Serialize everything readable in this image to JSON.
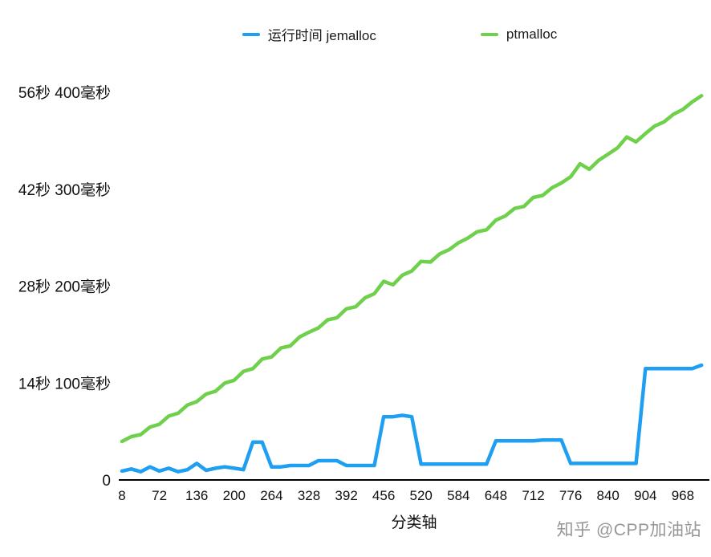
{
  "watermark": "知乎 @CPP加油站",
  "chart_data": {
    "type": "line",
    "title": "",
    "xlabel": "分类轴",
    "ylabel": "",
    "grid": false,
    "legend_position": "top",
    "xlim": [
      8,
      1008
    ],
    "ylim": [
      0,
      56.4
    ],
    "x_ticks": [
      8,
      72,
      136,
      200,
      264,
      328,
      392,
      456,
      520,
      584,
      648,
      712,
      776,
      840,
      904,
      968
    ],
    "y_ticks": [
      {
        "value": 0,
        "label": "0"
      },
      {
        "value": 14.1,
        "label": "14秒 100毫秒"
      },
      {
        "value": 28.2,
        "label": "28秒 200毫秒"
      },
      {
        "value": 42.3,
        "label": "42秒 300毫秒"
      },
      {
        "value": 56.4,
        "label": "56秒 400毫秒"
      }
    ],
    "x": [
      8,
      24,
      40,
      56,
      72,
      88,
      104,
      120,
      136,
      152,
      168,
      184,
      200,
      216,
      232,
      248,
      264,
      280,
      296,
      312,
      328,
      344,
      360,
      376,
      392,
      408,
      424,
      440,
      456,
      472,
      488,
      504,
      520,
      536,
      552,
      568,
      584,
      600,
      616,
      632,
      648,
      664,
      680,
      696,
      712,
      728,
      744,
      760,
      776,
      792,
      808,
      824,
      840,
      856,
      872,
      888,
      904,
      920,
      936,
      952,
      968,
      984,
      1000
    ],
    "series": [
      {
        "name": "运行时间 jemalloc",
        "color": "#1f9ff2",
        "values": [
          1.3,
          1.6,
          1.2,
          1.9,
          1.3,
          1.7,
          1.2,
          1.5,
          2.4,
          1.4,
          1.7,
          1.9,
          1.7,
          1.5,
          5.5,
          5.5,
          1.9,
          1.9,
          2.1,
          2.1,
          2.1,
          2.8,
          2.8,
          2.8,
          2.1,
          2.1,
          2.1,
          2.1,
          9.2,
          9.2,
          9.4,
          9.2,
          2.3,
          2.3,
          2.3,
          2.3,
          2.3,
          2.3,
          2.3,
          2.3,
          5.7,
          5.7,
          5.7,
          5.7,
          5.7,
          5.8,
          5.8,
          5.8,
          2.4,
          2.4,
          2.4,
          2.4,
          2.4,
          2.4,
          2.4,
          2.4,
          16.2,
          16.2,
          16.2,
          16.2,
          16.2,
          16.2,
          16.7
        ]
      },
      {
        "name": "ptmalloc",
        "color": "#6fd04c",
        "values": [
          5.6,
          6.3,
          6.6,
          7.7,
          8.1,
          9.3,
          9.7,
          10.9,
          11.4,
          12.5,
          12.9,
          14.1,
          14.5,
          15.8,
          16.2,
          17.6,
          17.9,
          19.2,
          19.5,
          20.8,
          21.5,
          22.1,
          23.3,
          23.6,
          24.9,
          25.2,
          26.5,
          27.1,
          28.9,
          28.4,
          29.8,
          30.4,
          31.8,
          31.7,
          32.9,
          33.5,
          34.5,
          35.2,
          36.1,
          36.4,
          37.8,
          38.4,
          39.5,
          39.8,
          41.1,
          41.4,
          42.5,
          43.2,
          44.1,
          46.0,
          45.2,
          46.5,
          47.4,
          48.3,
          49.9,
          49.2,
          50.4,
          51.5,
          52.1,
          53.2,
          53.9,
          55.0,
          55.9
        ]
      }
    ]
  }
}
